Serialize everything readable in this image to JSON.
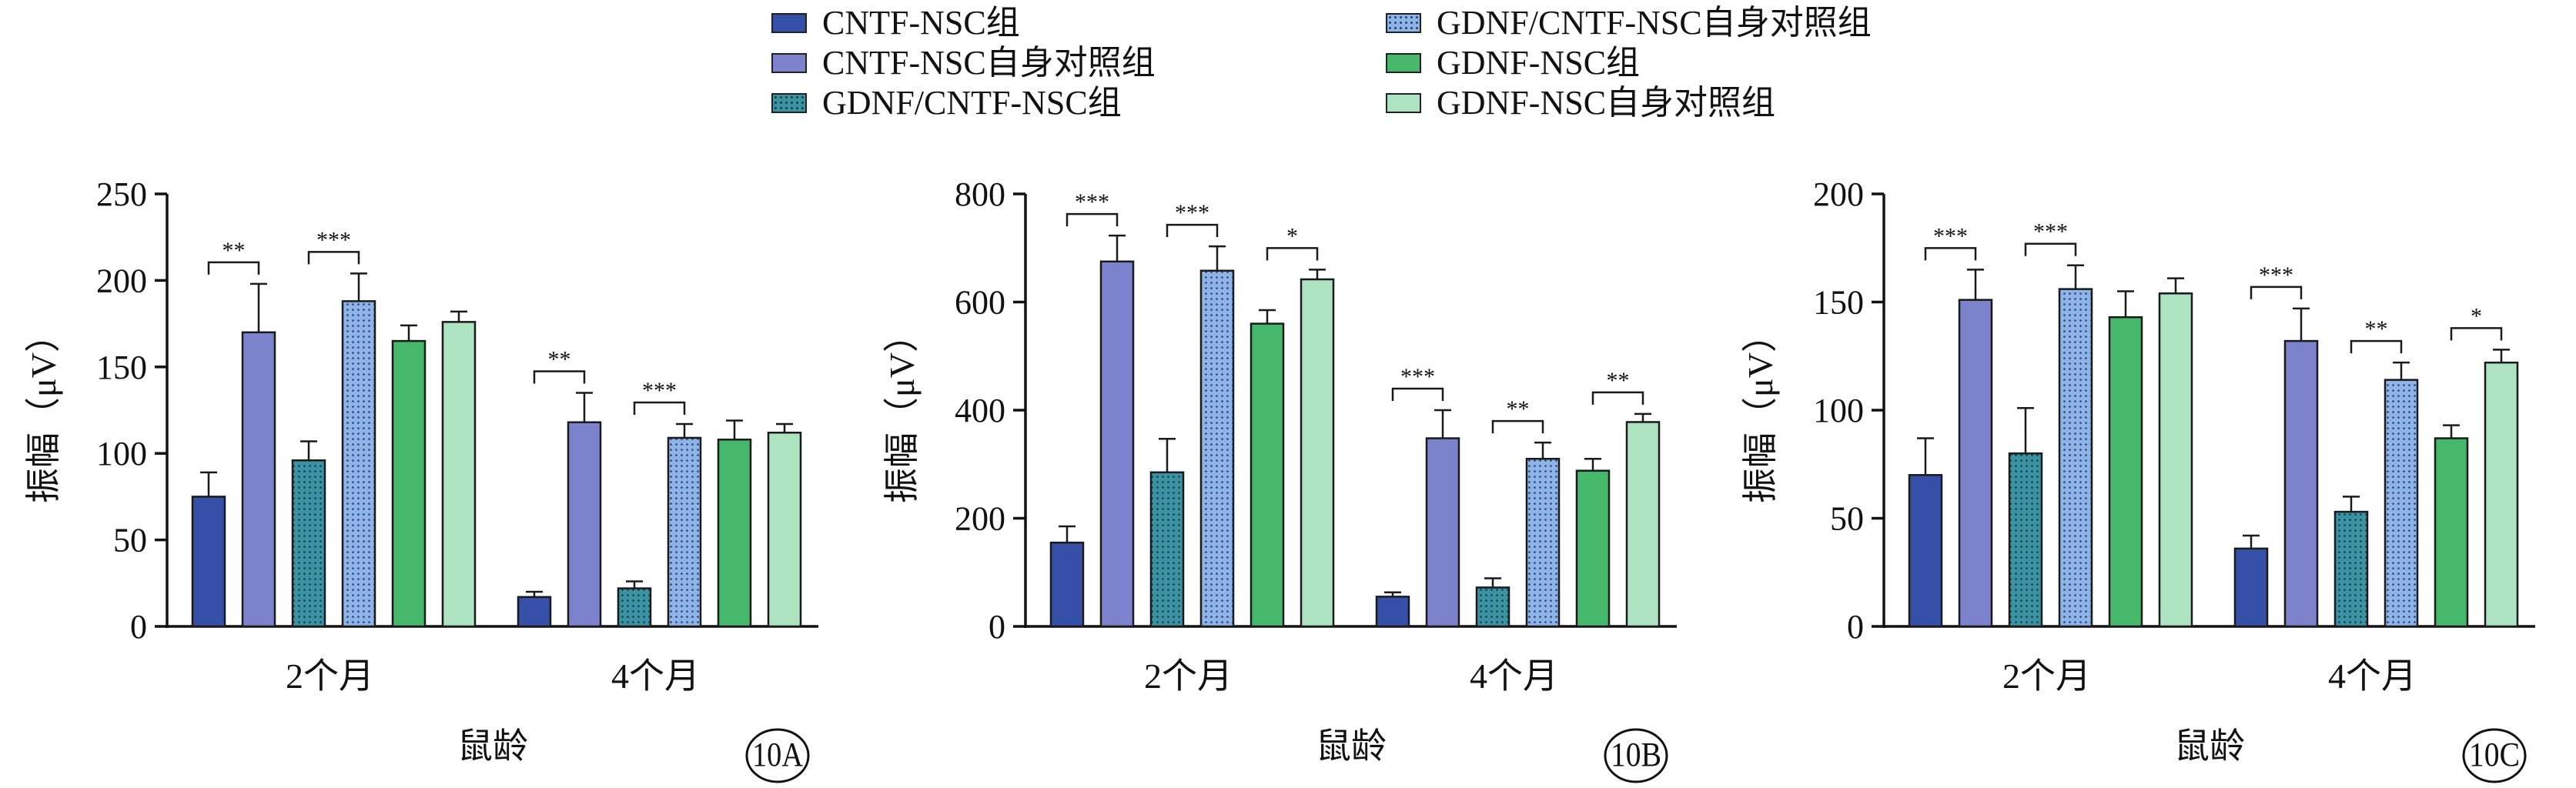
{
  "legend": {
    "items": [
      {
        "label": "CNTF-NSC组",
        "color": "#3650a8",
        "pattern": "solid"
      },
      {
        "label": "CNTF-NSC自身对照组",
        "color": "#7d82cc",
        "pattern": "solid"
      },
      {
        "label": "GDNF/CNTF-NSC组",
        "color": "#3a93a3",
        "pattern": "dots"
      },
      {
        "label": "GDNF/CNTF-NSC自身对照组",
        "color": "#8cb4ea",
        "pattern": "dots"
      },
      {
        "label": "GDNF-NSC组",
        "color": "#45b86c",
        "pattern": "solid"
      },
      {
        "label": "GDNF-NSC自身对照组",
        "color": "#ade3c1",
        "pattern": "solid"
      }
    ]
  },
  "chart_data": [
    {
      "type": "bar",
      "panel_label": "10A",
      "categories": [
        "2个月",
        "4个月"
      ],
      "xlabel": "鼠龄",
      "ylabel": "振幅（μV）",
      "ylim": [
        0,
        250
      ],
      "yticks": [
        0,
        50,
        100,
        150,
        200,
        250
      ],
      "series": [
        {
          "name": "CNTF-NSC组",
          "values": [
            75,
            17
          ],
          "errors": [
            14,
            3
          ]
        },
        {
          "name": "CNTF-NSC自身对照组",
          "values": [
            170,
            118
          ],
          "errors": [
            28,
            17
          ]
        },
        {
          "name": "GDNF/CNTF-NSC组",
          "values": [
            96,
            22
          ],
          "errors": [
            11,
            4
          ]
        },
        {
          "name": "GDNF/CNTF-NSC自身对照组",
          "values": [
            188,
            109
          ],
          "errors": [
            16,
            8
          ]
        },
        {
          "name": "GDNF-NSC组",
          "values": [
            165,
            108
          ],
          "errors": [
            9,
            11
          ]
        },
        {
          "name": "GDNF-NSC自身对照组",
          "values": [
            176,
            112
          ],
          "errors": [
            6,
            5
          ]
        }
      ],
      "significance": [
        {
          "category": 0,
          "pair": [
            0,
            1
          ],
          "label": "**"
        },
        {
          "category": 0,
          "pair": [
            2,
            3
          ],
          "label": "***"
        },
        {
          "category": 1,
          "pair": [
            0,
            1
          ],
          "label": "**"
        },
        {
          "category": 1,
          "pair": [
            2,
            3
          ],
          "label": "***"
        }
      ]
    },
    {
      "type": "bar",
      "panel_label": "10B",
      "categories": [
        "2个月",
        "4个月"
      ],
      "xlabel": "鼠龄",
      "ylabel": "振幅（μV）",
      "ylim": [
        0,
        800
      ],
      "yticks": [
        0,
        200,
        400,
        600,
        800
      ],
      "series": [
        {
          "name": "CNTF-NSC组",
          "values": [
            155,
            55
          ],
          "errors": [
            30,
            8
          ]
        },
        {
          "name": "CNTF-NSC自身对照组",
          "values": [
            675,
            348
          ],
          "errors": [
            48,
            52
          ]
        },
        {
          "name": "GDNF/CNTF-NSC组",
          "values": [
            285,
            72
          ],
          "errors": [
            62,
            17
          ]
        },
        {
          "name": "GDNF/CNTF-NSC自身对照组",
          "values": [
            658,
            310
          ],
          "errors": [
            45,
            30
          ]
        },
        {
          "name": "GDNF-NSC组",
          "values": [
            560,
            288
          ],
          "errors": [
            25,
            22
          ]
        },
        {
          "name": "GDNF-NSC自身对照组",
          "values": [
            642,
            378
          ],
          "errors": [
            18,
            15
          ]
        }
      ],
      "significance": [
        {
          "category": 0,
          "pair": [
            0,
            1
          ],
          "label": "***"
        },
        {
          "category": 0,
          "pair": [
            2,
            3
          ],
          "label": "***"
        },
        {
          "category": 0,
          "pair": [
            4,
            5
          ],
          "label": "*"
        },
        {
          "category": 1,
          "pair": [
            0,
            1
          ],
          "label": "***"
        },
        {
          "category": 1,
          "pair": [
            2,
            3
          ],
          "label": "**"
        },
        {
          "category": 1,
          "pair": [
            4,
            5
          ],
          "label": "**"
        }
      ]
    },
    {
      "type": "bar",
      "panel_label": "10C",
      "categories": [
        "2个月",
        "4个月"
      ],
      "xlabel": "鼠龄",
      "ylabel": "振幅（μV）",
      "ylim": [
        0,
        200
      ],
      "yticks": [
        0,
        50,
        100,
        150,
        200
      ],
      "series": [
        {
          "name": "CNTF-NSC组",
          "values": [
            70,
            36
          ],
          "errors": [
            17,
            6
          ]
        },
        {
          "name": "CNTF-NSC自身对照组",
          "values": [
            151,
            132
          ],
          "errors": [
            14,
            15
          ]
        },
        {
          "name": "GDNF/CNTF-NSC组",
          "values": [
            80,
            53
          ],
          "errors": [
            21,
            7
          ]
        },
        {
          "name": "GDNF/CNTF-NSC自身对照组",
          "values": [
            156,
            114
          ],
          "errors": [
            11,
            8
          ]
        },
        {
          "name": "GDNF-NSC组",
          "values": [
            143,
            87
          ],
          "errors": [
            12,
            6
          ]
        },
        {
          "name": "GDNF-NSC自身对照组",
          "values": [
            154,
            122
          ],
          "errors": [
            7,
            6
          ]
        }
      ],
      "significance": [
        {
          "category": 0,
          "pair": [
            0,
            1
          ],
          "label": "***"
        },
        {
          "category": 0,
          "pair": [
            2,
            3
          ],
          "label": "***"
        },
        {
          "category": 1,
          "pair": [
            0,
            1
          ],
          "label": "***"
        },
        {
          "category": 1,
          "pair": [
            2,
            3
          ],
          "label": "**"
        },
        {
          "category": 1,
          "pair": [
            4,
            5
          ],
          "label": "*"
        }
      ]
    }
  ]
}
